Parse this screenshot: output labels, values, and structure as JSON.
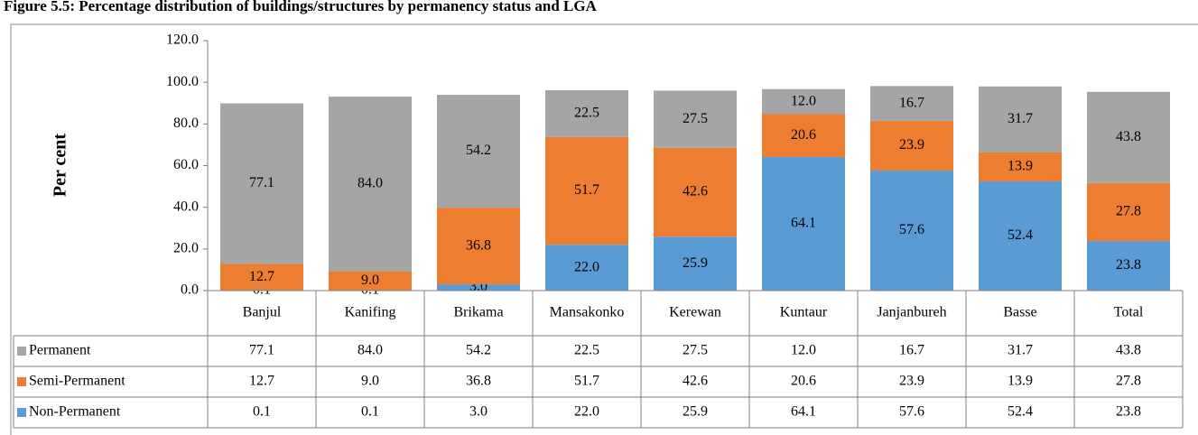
{
  "chart_data": {
    "type": "bar",
    "stacked": true,
    "title": "Figure 5.5: Percentage distribution of buildings/structures by permanency status and LGA",
    "y_label": "Per cent",
    "categories": [
      "Banjul",
      "Kanifing",
      "Brikama",
      "Mansakonko",
      "Kerewan",
      "Kuntaur",
      "Janjanbureh",
      "Basse",
      "Total"
    ],
    "series": [
      {
        "name": "Non-Permanent",
        "color": "#5b9bd5",
        "values": [
          0.1,
          0.1,
          3,
          22,
          25.9,
          64.1,
          57.6,
          52.4,
          23.8
        ],
        "value_labels": [
          "0.1",
          "0.1",
          "3.0",
          "22.0",
          "25.9",
          "64.1",
          "57.6",
          "52.4",
          "23.8"
        ]
      },
      {
        "name": "Semi-Permanent",
        "color": "#ed7d31",
        "values": [
          12.7,
          9,
          36.8,
          51.7,
          42.6,
          20.6,
          23.9,
          13.9,
          27.8
        ],
        "value_labels": [
          "12.7",
          "9.0",
          "36.8",
          "51.7",
          "42.6",
          "20.6",
          "23.9",
          "13.9",
          "27.8"
        ]
      },
      {
        "name": "Permanent",
        "color": "#a5a5a5",
        "values": [
          77.1,
          84,
          54.2,
          22.5,
          27.5,
          12,
          16.7,
          31.7,
          43.8
        ],
        "value_labels": [
          "77.1",
          "84.0",
          "54.2",
          "22.5",
          "27.5",
          "12.0",
          "16.7",
          "31.7",
          "43.8"
        ]
      }
    ],
    "ylim": [
      0,
      120
    ],
    "yticks": [
      {
        "value": 0,
        "label": "0.0"
      },
      {
        "value": 20,
        "label": "20.0"
      },
      {
        "value": 40,
        "label": "40.0"
      },
      {
        "value": 60,
        "label": "60.0"
      },
      {
        "value": 80,
        "label": "80.0"
      },
      {
        "value": 100,
        "label": "100.0"
      },
      {
        "value": 120,
        "label": "120.0"
      }
    ],
    "grid": false
  }
}
